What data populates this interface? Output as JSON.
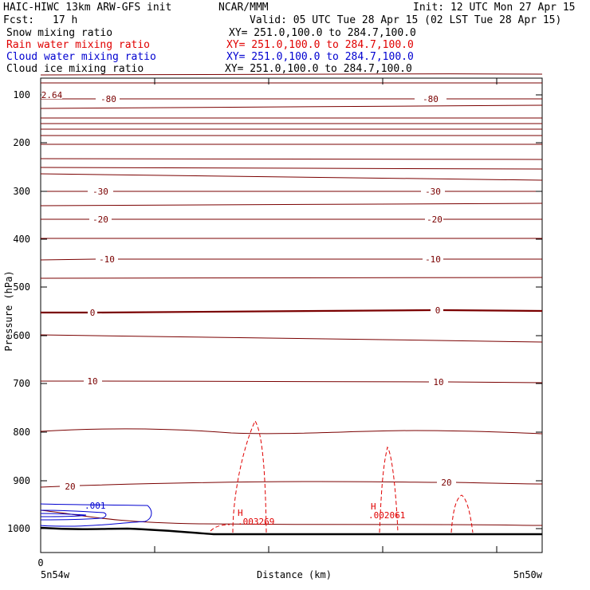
{
  "header": {
    "model": "HAIC-HIWC 13km ARW-GFS init",
    "org": "NCAR/MMM",
    "init": "Init: 12 UTC Mon 27 Apr 15",
    "fcst_label": "Fcst:",
    "fcst_value": "17 h",
    "valid": "Valid: 05 UTC Tue 28 Apr 15 (02 LST Tue 28 Apr 15)"
  },
  "legend": [
    {
      "name": "Snow mixing ratio",
      "xy": "XY= 251.0,100.0 to 284.7,100.0",
      "color": "#000000"
    },
    {
      "name": "Rain water mixing ratio",
      "xy": "XY= 251.0,100.0 to 284.7,100.0",
      "color": "#e00000"
    },
    {
      "name": "Cloud water mixing ratio",
      "xy": "XY= 251.0,100.0 to 284.7,100.0",
      "color": "#0000d0"
    },
    {
      "name": "Cloud ice mixing ratio",
      "xy": "XY= 251.0,100.0 to 284.7,100.0",
      "color": "#000000"
    }
  ],
  "chart_data": {
    "type": "line",
    "ylabel": "Pressure (hPa)",
    "xlabel": "Distance (km)",
    "x_start_label": "0",
    "x_left_label": "5n54w",
    "x_right_label": "5n50w",
    "y_ticks": [
      100,
      200,
      300,
      400,
      500,
      600,
      700,
      800,
      900,
      1000
    ],
    "ylim": [
      1050,
      70
    ],
    "y_scale": "linear",
    "temperature_contour_labels": [
      {
        "value": "-80",
        "p": 105
      },
      {
        "value": "-30",
        "p": 300
      },
      {
        "value": "-20",
        "p": 360
      },
      {
        "value": "-10",
        "p": 425
      },
      {
        "value": "0",
        "p": 550
      },
      {
        "value": "10",
        "p": 695
      },
      {
        "value": "20",
        "p": 910
      }
    ],
    "max_annotations": [
      {
        "label": "H",
        "value": ".003269",
        "color": "#e00000"
      },
      {
        "label": "H",
        "value": ".002061",
        "color": "#e00000"
      }
    ],
    "cloud_water_label": ".001",
    "corner_label": "2.64"
  }
}
